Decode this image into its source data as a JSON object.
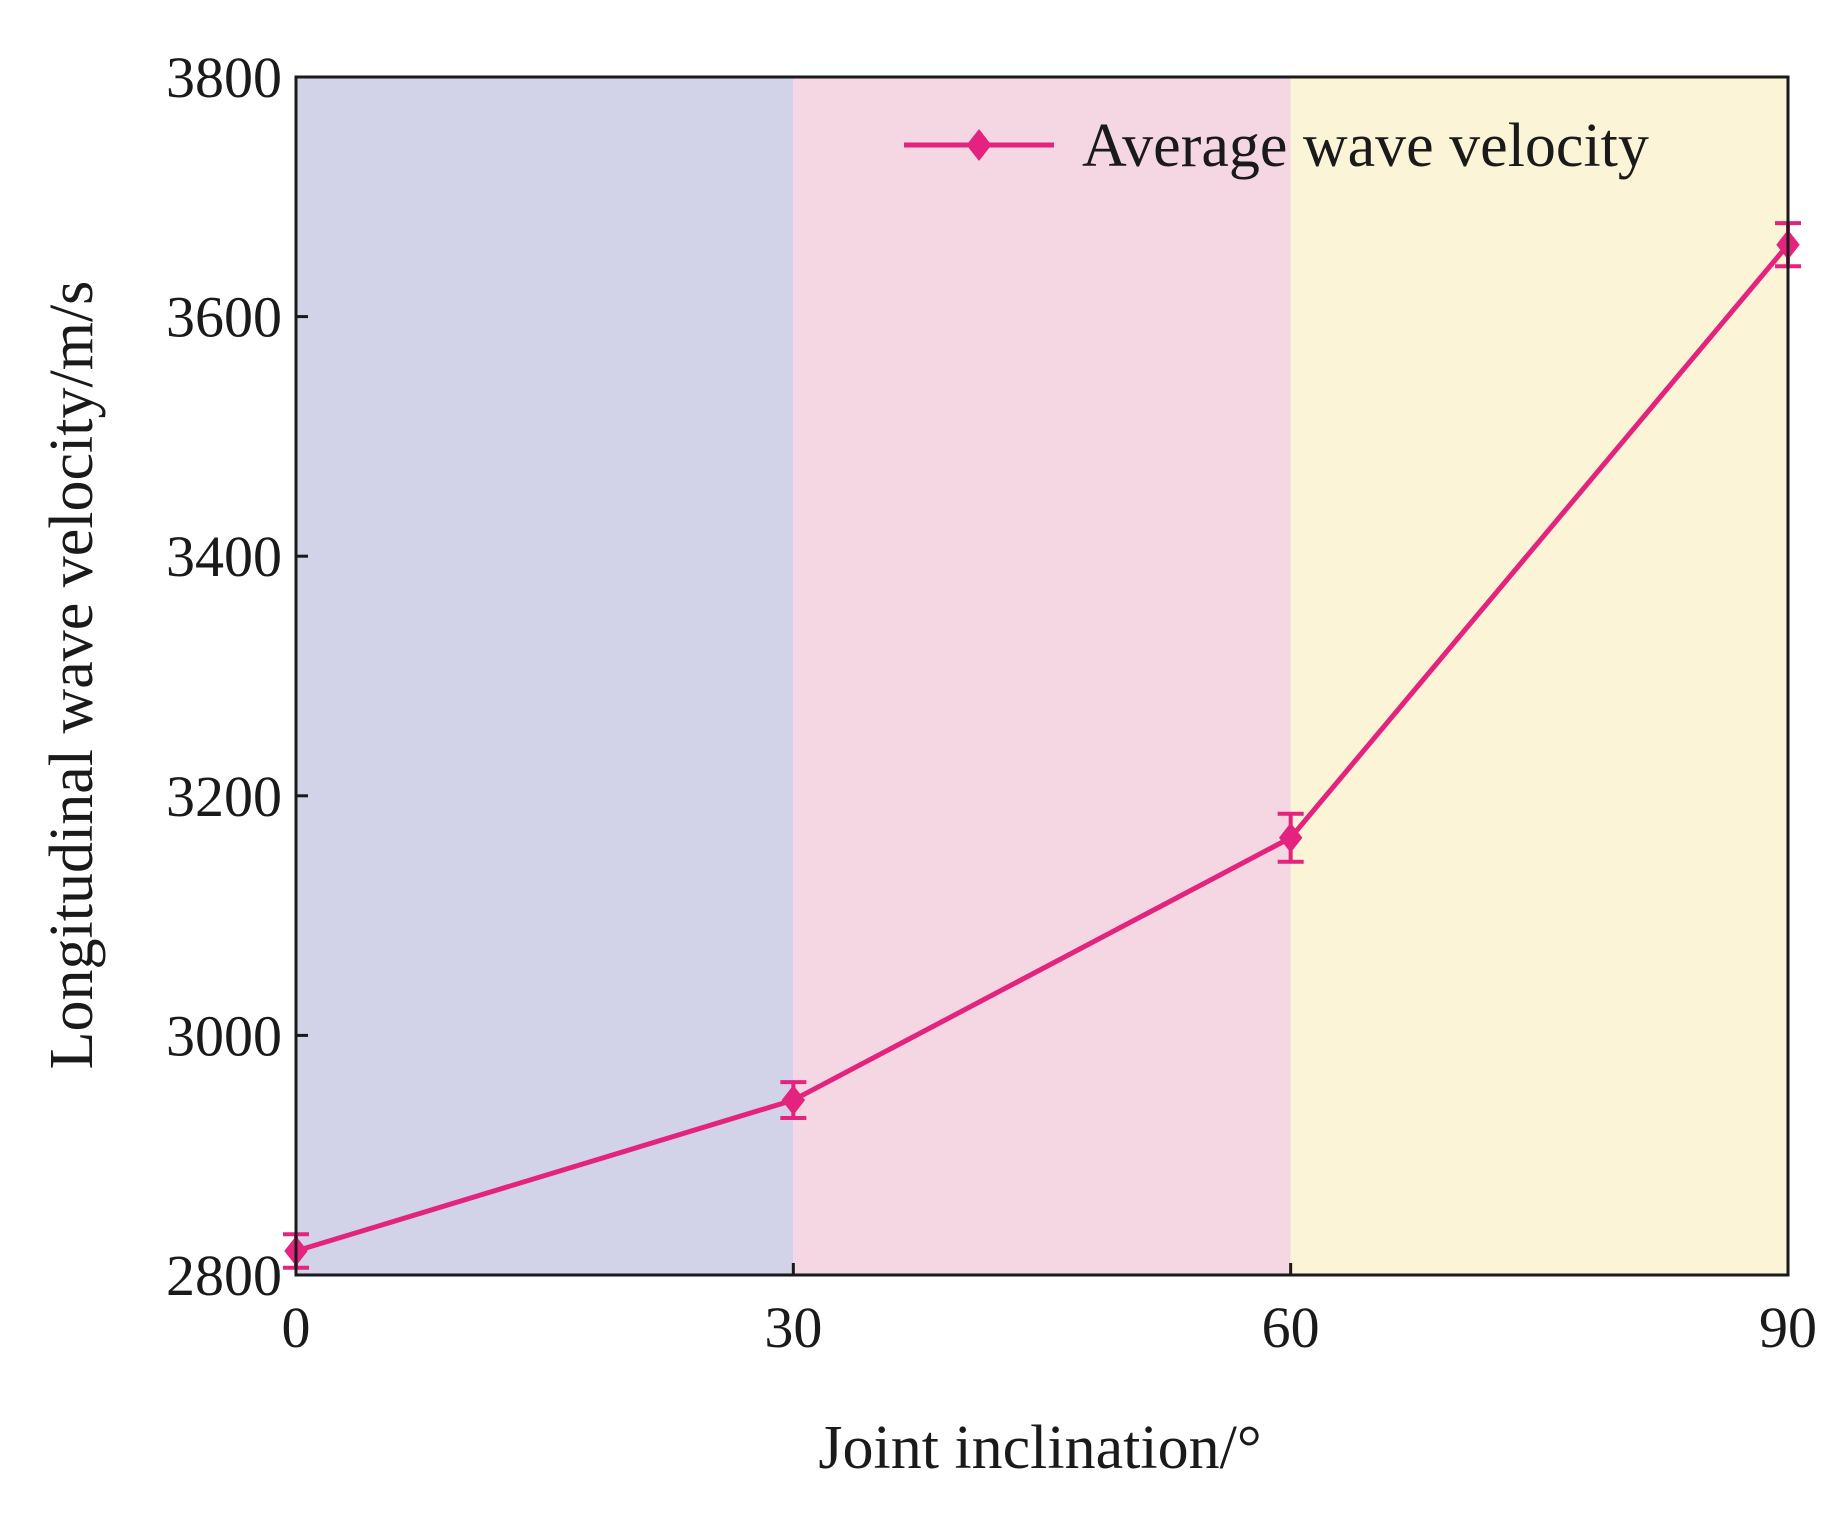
{
  "chart_data": {
    "type": "line",
    "title": "",
    "xlabel": "Joint inclination/°",
    "ylabel": "Longitudinal wave velocity/m/s",
    "xlim": [
      0,
      90
    ],
    "ylim": [
      2800,
      3800
    ],
    "x_ticks": [
      0,
      30,
      60,
      90
    ],
    "x_tick_labels": [
      "0",
      "30",
      "60",
      "90"
    ],
    "y_ticks": [
      2800,
      3000,
      3200,
      3400,
      3600,
      3800
    ],
    "y_tick_labels": [
      "2800",
      "3000",
      "3200",
      "3400",
      "3600",
      "3800"
    ],
    "grid": false,
    "legend_position": "top-right",
    "background_bands": [
      {
        "x_from": 0,
        "x_to": 30,
        "color": "#d2d3e8"
      },
      {
        "x_from": 30,
        "x_to": 60,
        "color": "#f5d6e3"
      },
      {
        "x_from": 60,
        "x_to": 90,
        "color": "#fbf4d6"
      }
    ],
    "series": [
      {
        "name": "Average wave velocity",
        "color": "#e3237d",
        "marker": "diamond",
        "x": [
          0,
          30,
          60,
          90
        ],
        "values": [
          2820,
          2946,
          3165,
          3660
        ],
        "errors": [
          14,
          15,
          20,
          18
        ]
      }
    ]
  }
}
